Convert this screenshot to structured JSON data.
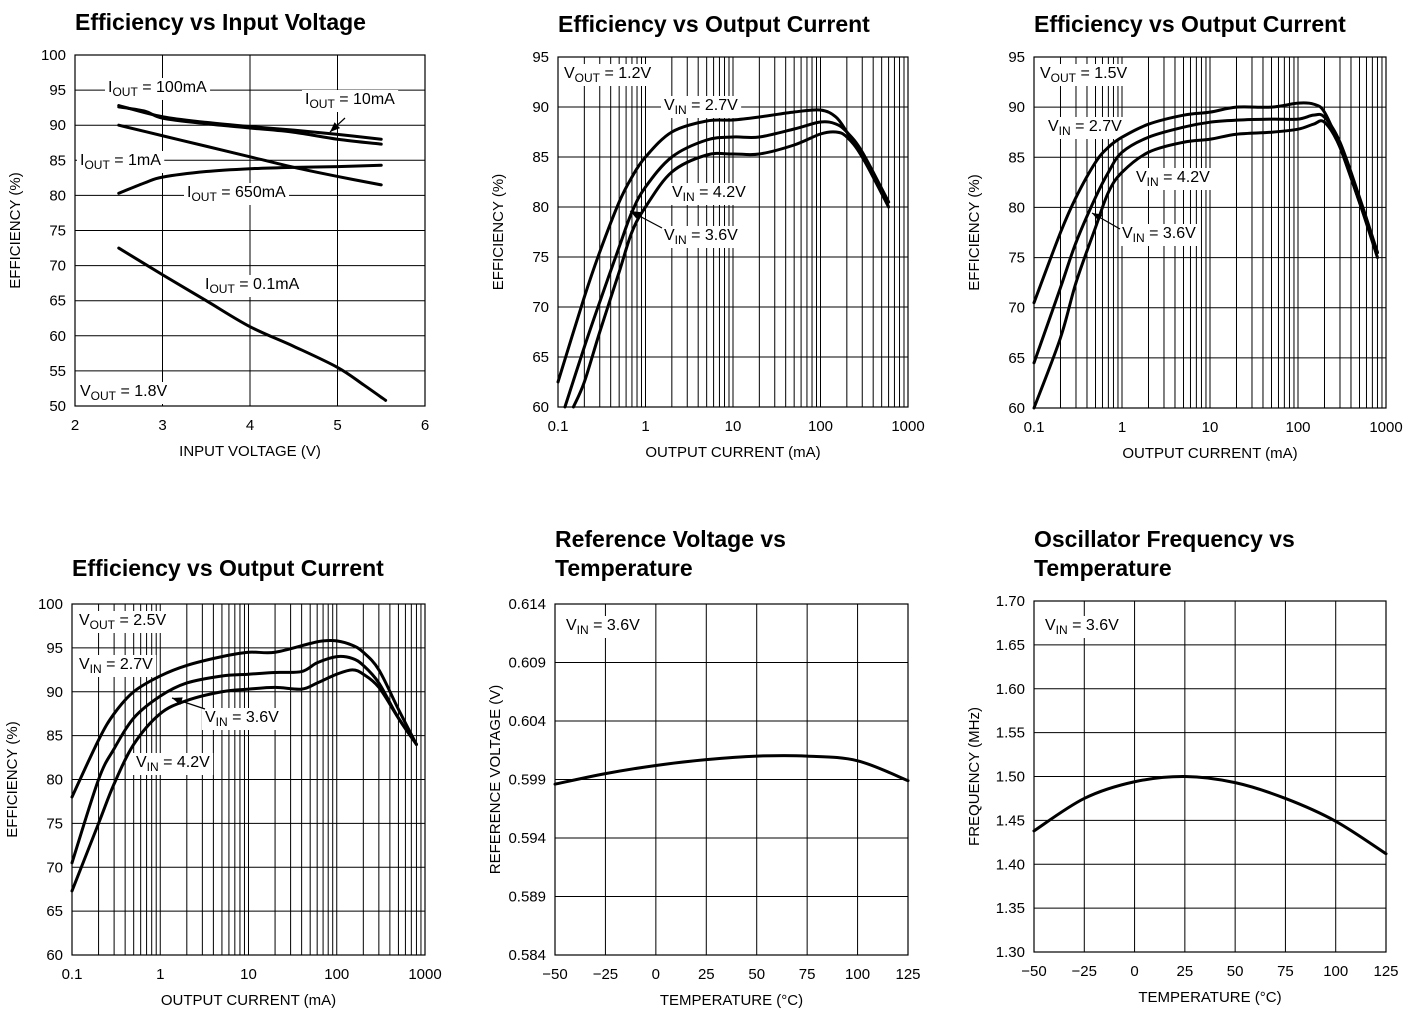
{
  "chart_data": [
    {
      "type": "line",
      "title": "Efficiency vs Input  Voltage",
      "xlabel": "INPUT VOLTAGE (V)",
      "ylabel": "EFFICIENCY (%)",
      "xscale": "linear",
      "xlim": [
        2,
        6
      ],
      "ylim": [
        50,
        100
      ],
      "xticks": [
        2,
        3,
        4,
        5,
        6
      ],
      "yticks": [
        50,
        55,
        60,
        65,
        70,
        75,
        80,
        85,
        90,
        95,
        100
      ],
      "grid": true,
      "series": [
        {
          "name": "IOUT = 100mA",
          "x": [
            2.5,
            3.0,
            3.5,
            4.0,
            4.5,
            5.0,
            5.5
          ],
          "y": [
            92.8,
            91.2,
            90.4,
            89.8,
            89.3,
            88.7,
            88.0
          ]
        },
        {
          "name": "IOUT = 10mA",
          "x": [
            2.5,
            2.8,
            3.0,
            3.5,
            4.0,
            4.5,
            5.0,
            5.5
          ],
          "y": [
            92.6,
            92.0,
            91.0,
            90.2,
            89.6,
            89.0,
            88.0,
            87.3
          ]
        },
        {
          "name": "IOUT = 1mA",
          "x": [
            2.5,
            3.0,
            3.5,
            4.0,
            4.5,
            5.0,
            5.5
          ],
          "y": [
            90.0,
            88.5,
            87.0,
            85.5,
            84.0,
            82.7,
            81.5
          ]
        },
        {
          "name": "IOUT = 650mA",
          "x": [
            2.5,
            2.8,
            3.0,
            3.5,
            4.0,
            4.5,
            5.0,
            5.5
          ],
          "y": [
            80.3,
            81.8,
            82.6,
            83.4,
            83.8,
            84.0,
            84.1,
            84.3
          ]
        },
        {
          "name": "IOUT = 0.1mA",
          "x": [
            2.5,
            3.0,
            3.5,
            4.0,
            4.5,
            5.0,
            5.3,
            5.55
          ],
          "y": [
            72.5,
            68.7,
            65.0,
            61.3,
            58.5,
            55.5,
            53.0,
            50.8
          ]
        }
      ],
      "annotations": [
        {
          "main": "I",
          "sub": "OUT",
          "rest": " = 100mA"
        },
        {
          "main": "I",
          "sub": "OUT",
          "rest": " = 10mA"
        },
        {
          "main": "I",
          "sub": "OUT",
          "rest": " = 1mA"
        },
        {
          "main": "I",
          "sub": "OUT",
          "rest": " = 650mA"
        },
        {
          "main": "I",
          "sub": "OUT",
          "rest": " = 0.1mA"
        },
        {
          "main": "V",
          "sub": "OUT",
          "rest": " = 1.8V"
        }
      ]
    },
    {
      "type": "line",
      "title": "Efficiency vs Output Current",
      "xlabel": "OUTPUT CURRENT (mA)",
      "ylabel": "EFFICIENCY (%)",
      "xscale": "log",
      "xlim": [
        0.1,
        1000
      ],
      "ylim": [
        60,
        95
      ],
      "xticks": [
        0.1,
        1,
        10,
        100,
        1000
      ],
      "yticks": [
        60,
        65,
        70,
        75,
        80,
        85,
        90,
        95
      ],
      "grid": true,
      "series": [
        {
          "name": "VIN = 2.7V",
          "x": [
            0.1,
            0.2,
            0.3,
            0.5,
            0.7,
            1,
            2,
            5,
            10,
            20,
            50,
            100,
            150,
            200,
            300,
            600
          ],
          "y": [
            62.5,
            71.0,
            75.5,
            80.5,
            83.0,
            85.0,
            87.5,
            88.6,
            88.7,
            89.0,
            89.5,
            89.7,
            89.0,
            87.5,
            85.0,
            80.5
          ]
        },
        {
          "name": "VIN = 4.2V",
          "x": [
            0.12,
            0.2,
            0.3,
            0.5,
            0.7,
            1,
            2,
            5,
            10,
            20,
            50,
            100,
            150,
            200,
            300,
            600
          ],
          "y": [
            60.0,
            66.0,
            70.5,
            76.0,
            79.5,
            82.0,
            85.0,
            86.7,
            87.0,
            87.0,
            87.8,
            88.5,
            88.3,
            87.5,
            85.5,
            80.5
          ]
        },
        {
          "name": "VIN = 3.6V",
          "x": [
            0.15,
            0.2,
            0.3,
            0.5,
            0.7,
            1,
            2,
            5,
            10,
            20,
            50,
            100,
            150,
            200,
            300,
            600
          ],
          "y": [
            60.0,
            62.5,
            67.5,
            73.5,
            77.5,
            80.0,
            83.5,
            85.2,
            85.3,
            85.3,
            86.2,
            87.3,
            87.5,
            87.0,
            85.0,
            80.0
          ]
        }
      ],
      "annotations": [
        {
          "main": "V",
          "sub": "OUT",
          "rest": " = 1.2V"
        },
        {
          "main": "V",
          "sub": "IN",
          "rest": " = 2.7V"
        },
        {
          "main": "V",
          "sub": "IN",
          "rest": " = 4.2V"
        },
        {
          "main": "V",
          "sub": "IN",
          "rest": " = 3.6V"
        }
      ]
    },
    {
      "type": "line",
      "title": "Efficiency vs Output Current",
      "xlabel": "OUTPUT CURRENT (mA)",
      "ylabel": "EFFICIENCY (%)",
      "xscale": "log",
      "xlim": [
        0.1,
        1000
      ],
      "ylim": [
        60,
        95
      ],
      "xticks": [
        0.1,
        1,
        10,
        100,
        1000
      ],
      "yticks": [
        60,
        65,
        70,
        75,
        80,
        85,
        90,
        95
      ],
      "grid": true,
      "series": [
        {
          "name": "VIN = 2.7V",
          "x": [
            0.1,
            0.2,
            0.3,
            0.5,
            0.7,
            1,
            2,
            5,
            10,
            20,
            50,
            100,
            150,
            200,
            300,
            500,
            800
          ],
          "y": [
            70.5,
            77.5,
            81.0,
            84.5,
            86.0,
            87.0,
            88.3,
            89.2,
            89.5,
            90.0,
            90.0,
            90.4,
            90.3,
            89.5,
            86.0,
            80.5,
            75.5
          ]
        },
        {
          "name": "VIN = 4.2V",
          "x": [
            0.1,
            0.2,
            0.3,
            0.5,
            0.7,
            1,
            2,
            5,
            10,
            20,
            50,
            100,
            150,
            200,
            300,
            500,
            800
          ],
          "y": [
            64.5,
            72.0,
            76.5,
            81.0,
            83.5,
            85.5,
            87.0,
            88.0,
            88.5,
            88.7,
            88.8,
            88.8,
            89.2,
            89.0,
            86.5,
            81.0,
            75.5
          ]
        },
        {
          "name": "VIN = 3.6V",
          "x": [
            0.1,
            0.2,
            0.3,
            0.5,
            0.7,
            1,
            2,
            5,
            10,
            20,
            50,
            100,
            150,
            200,
            300,
            500,
            800
          ],
          "y": [
            60.0,
            67.0,
            72.5,
            78.0,
            81.5,
            83.5,
            85.5,
            86.5,
            86.8,
            87.3,
            87.5,
            87.8,
            88.3,
            88.5,
            86.0,
            80.5,
            75.0
          ]
        }
      ],
      "annotations": [
        {
          "main": "V",
          "sub": "OUT",
          "rest": " = 1.5V"
        },
        {
          "main": "V",
          "sub": "IN",
          "rest": " = 2.7V"
        },
        {
          "main": "V",
          "sub": "IN",
          "rest": " = 4.2V"
        },
        {
          "main": "V",
          "sub": "IN",
          "rest": " = 3.6V"
        }
      ]
    },
    {
      "type": "line",
      "title": "Efficiency vs Output Current",
      "xlabel": "OUTPUT CURRENT (mA)",
      "ylabel": "EFFICIENCY (%)",
      "xscale": "log",
      "xlim": [
        0.1,
        1000
      ],
      "ylim": [
        60,
        100
      ],
      "xticks": [
        0.1,
        1,
        10,
        100,
        1000
      ],
      "yticks": [
        60,
        65,
        70,
        75,
        80,
        85,
        90,
        95,
        100
      ],
      "grid": true,
      "series": [
        {
          "name": "VIN = 2.7V",
          "x": [
            0.1,
            0.2,
            0.3,
            0.5,
            1,
            2,
            5,
            10,
            20,
            50,
            70,
            100,
            150,
            200,
            300,
            500,
            800
          ],
          "y": [
            78.0,
            84.5,
            87.5,
            90.0,
            91.8,
            93.0,
            94.0,
            94.5,
            94.5,
            95.5,
            95.8,
            95.8,
            95.3,
            94.5,
            92.5,
            88.0,
            84.0
          ]
        },
        {
          "name": "VIN = 3.6V",
          "x": [
            0.1,
            0.2,
            0.3,
            0.5,
            1,
            2,
            5,
            10,
            20,
            40,
            60,
            100,
            150,
            200,
            300,
            500,
            800
          ],
          "y": [
            70.5,
            80.0,
            83.5,
            87.0,
            89.5,
            91.0,
            91.8,
            92.0,
            92.2,
            92.3,
            93.3,
            94.0,
            93.8,
            93.0,
            91.0,
            87.0,
            84.0
          ]
        },
        {
          "name": "VIN = 4.2V",
          "x": [
            0.1,
            0.2,
            0.3,
            0.5,
            1,
            2,
            5,
            10,
            20,
            40,
            60,
            100,
            150,
            200,
            300,
            500,
            800
          ],
          "y": [
            67.3,
            75.0,
            79.5,
            84.0,
            87.5,
            89.0,
            90.0,
            90.3,
            90.5,
            90.3,
            91.0,
            92.0,
            92.5,
            92.0,
            90.5,
            87.0,
            84.0
          ]
        }
      ],
      "annotations": [
        {
          "main": "V",
          "sub": "OUT",
          "rest": " = 2.5V"
        },
        {
          "main": "V",
          "sub": "IN",
          "rest": " = 2.7V"
        },
        {
          "main": "V",
          "sub": "IN",
          "rest": " = 3.6V"
        },
        {
          "main": "V",
          "sub": "IN",
          "rest": " = 4.2V"
        }
      ]
    },
    {
      "type": "line",
      "title": [
        "Reference Voltage vs",
        "Temperature"
      ],
      "xlabel": "TEMPERATURE (°C)",
      "ylabel": "REFERENCE VOLTAGE (V)",
      "xscale": "linear",
      "xlim": [
        -50,
        125
      ],
      "ylim": [
        0.584,
        0.614
      ],
      "xticks": [
        "−50",
        "−25",
        "0",
        "25",
        "50",
        "75",
        "100",
        "125"
      ],
      "yticks": [
        "0.584",
        "0.589",
        "0.594",
        "0.599",
        "0.604",
        "0.609",
        "0.614"
      ],
      "grid": true,
      "series": [
        {
          "x": [
            -50,
            -25,
            0,
            25,
            50,
            75,
            100,
            125
          ],
          "y": [
            0.5986,
            0.5995,
            0.6002,
            0.6007,
            0.601,
            0.601,
            0.6006,
            0.5989
          ]
        }
      ],
      "annotations": [
        {
          "main": "V",
          "sub": "IN",
          "rest": " = 3.6V"
        }
      ]
    },
    {
      "type": "line",
      "title": [
        "Oscillator Frequency vs",
        "Temperature"
      ],
      "xlabel": "TEMPERATURE (°C)",
      "ylabel": "FREQUENCY (MHz)",
      "xscale": "linear",
      "xlim": [
        -50,
        125
      ],
      "ylim": [
        1.3,
        1.7
      ],
      "xticks": [
        "−50",
        "−25",
        "0",
        "25",
        "50",
        "75",
        "100",
        "125"
      ],
      "yticks": [
        "1.30",
        "1.35",
        "1.40",
        "1.45",
        "1.50",
        "1.55",
        "1.60",
        "1.65",
        "1.70"
      ],
      "grid": true,
      "series": [
        {
          "x": [
            -50,
            -25,
            0,
            25,
            50,
            75,
            100,
            125
          ],
          "y": [
            1.438,
            1.475,
            1.494,
            1.5,
            1.493,
            1.475,
            1.449,
            1.412
          ]
        }
      ],
      "annotations": [
        {
          "main": "V",
          "sub": "IN",
          "rest": " = 3.6V"
        }
      ]
    }
  ]
}
